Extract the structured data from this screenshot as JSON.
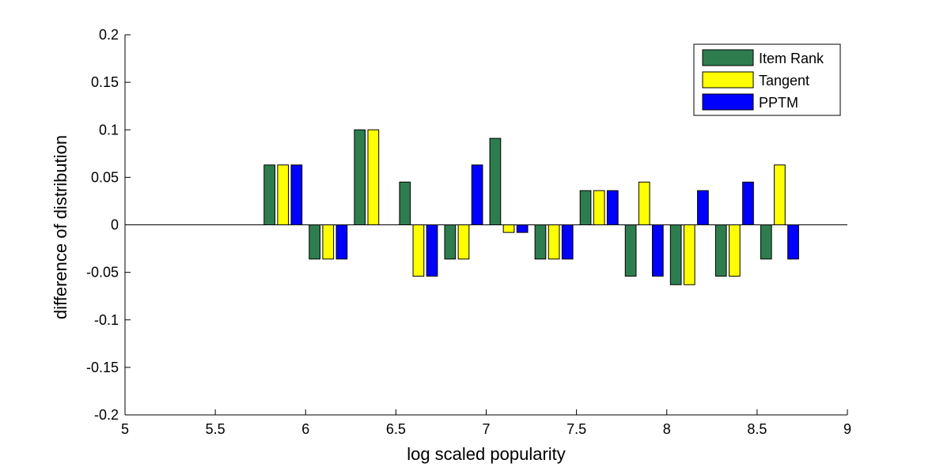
{
  "chart_data": {
    "type": "bar",
    "title": "",
    "xlabel": "log scaled popularity",
    "ylabel": "difference of distribution",
    "xlim": [
      5,
      9
    ],
    "ylim": [
      -0.2,
      0.2
    ],
    "xticks": [
      5,
      5.5,
      6,
      6.5,
      7,
      7.5,
      8,
      8.5,
      9
    ],
    "xtick_labels": [
      "5",
      "5.5",
      "6",
      "6.5",
      "7",
      "7.5",
      "8",
      "8.5",
      "9"
    ],
    "yticks": [
      -0.2,
      -0.15,
      -0.1,
      -0.05,
      0,
      0.05,
      0.1,
      0.15,
      0.2
    ],
    "ytick_labels": [
      "-0.2",
      "-0.15",
      "-0.1",
      "-0.05",
      "0",
      "0.05",
      "0.1",
      "0.15",
      "0.2"
    ],
    "grid": false,
    "legend_position": "top-right",
    "categories": [
      5.875,
      6.125,
      6.375,
      6.625,
      6.875,
      7.125,
      7.375,
      7.625,
      7.875,
      8.125,
      8.375,
      8.625
    ],
    "series": [
      {
        "name": "Item Rank",
        "color": "#2e7d4f",
        "values": [
          0.063,
          -0.036,
          0.1,
          0.045,
          -0.036,
          0.091,
          -0.036,
          0.036,
          -0.054,
          -0.063,
          -0.054,
          -0.036
        ]
      },
      {
        "name": "Tangent",
        "color": "#ffff00",
        "values": [
          0.063,
          -0.036,
          0.1,
          -0.054,
          -0.036,
          -0.008,
          -0.036,
          0.036,
          0.045,
          -0.063,
          -0.054,
          0.063
        ]
      },
      {
        "name": "PPTM",
        "color": "#0000ff",
        "values": [
          0.063,
          -0.036,
          null,
          -0.054,
          0.063,
          -0.008,
          -0.036,
          0.036,
          -0.054,
          0.036,
          0.045,
          -0.036
        ]
      }
    ]
  }
}
